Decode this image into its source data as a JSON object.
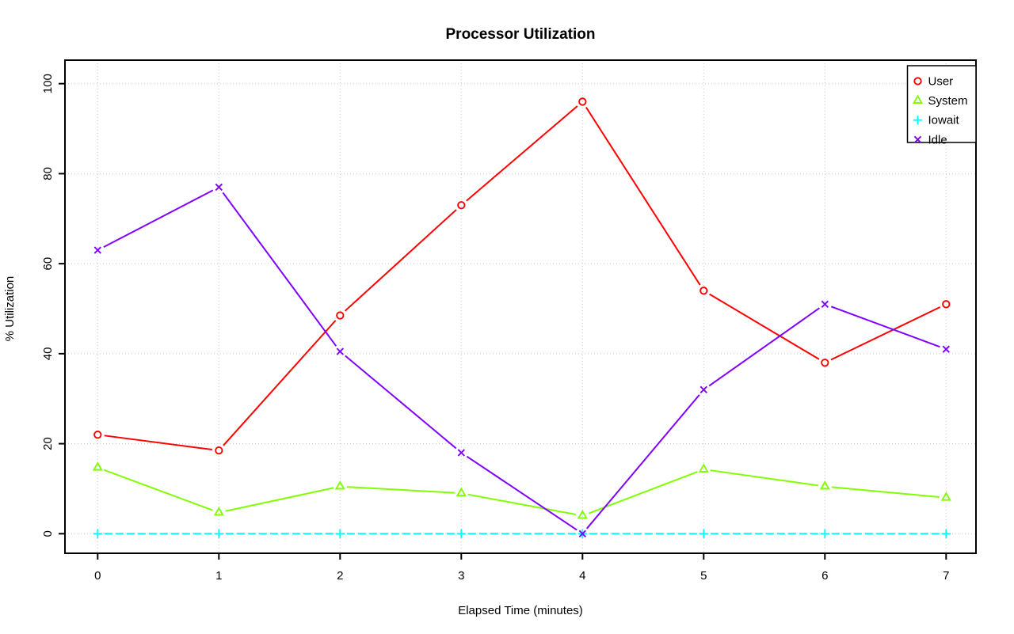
{
  "chart_data": {
    "type": "line",
    "title": "Processor Utilization",
    "xlabel": "Elapsed Time (minutes)",
    "ylabel": "% Utilization",
    "x": [
      0,
      1,
      2,
      3,
      4,
      5,
      6,
      7
    ],
    "xlim": [
      0,
      7
    ],
    "ylim": [
      0,
      100
    ],
    "x_ticks": [
      0,
      1,
      2,
      3,
      4,
      5,
      6,
      7
    ],
    "y_ticks": [
      0,
      20,
      40,
      60,
      80,
      100
    ],
    "grid": "dotted",
    "grid_color": "#c8c8c8",
    "axis_color": "#000000",
    "background": "#ffffff",
    "legend": {
      "position": "top-right",
      "border": true
    },
    "series": [
      {
        "name": "User",
        "color": "#ff0000",
        "marker": "circle",
        "linestyle": "solid",
        "values": [
          22,
          18.5,
          48.5,
          73,
          96,
          54,
          38,
          51
        ]
      },
      {
        "name": "System",
        "color": "#80ff00",
        "marker": "triangle",
        "linestyle": "solid",
        "values": [
          14.7,
          4.7,
          10.5,
          9,
          4,
          14.3,
          10.5,
          8
        ]
      },
      {
        "name": "Iowait",
        "color": "#00ffff",
        "marker": "plus",
        "linestyle": "dashed",
        "values": [
          0,
          0,
          0,
          0,
          0,
          0,
          0,
          0
        ]
      },
      {
        "name": "Idle",
        "color": "#8000ff",
        "marker": "x",
        "linestyle": "solid",
        "values": [
          63,
          77,
          40.5,
          18,
          0,
          32,
          51,
          41
        ]
      }
    ]
  }
}
